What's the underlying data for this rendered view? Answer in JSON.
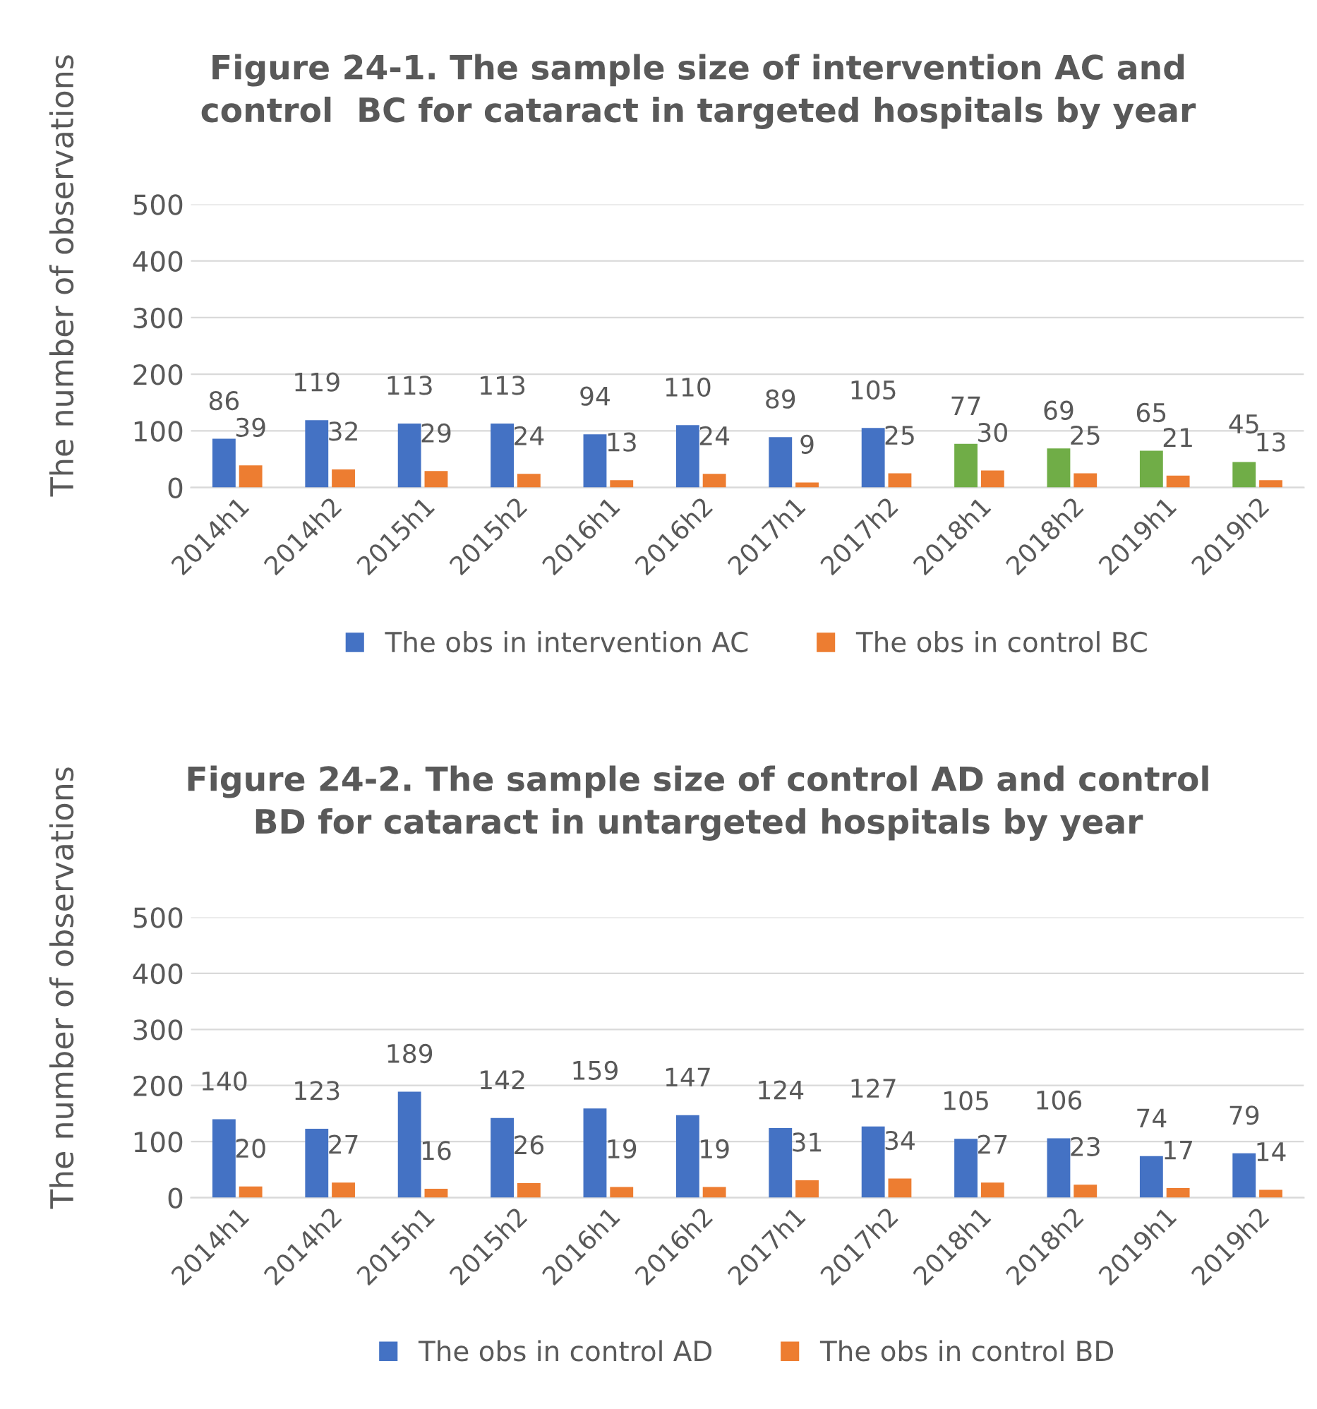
{
  "chart_data": [
    {
      "type": "bar",
      "title": "Figure 24-1. The sample size of intervention AC and\ncontrol  BC for cataract in targeted hospitals by year",
      "ylabel": "The number of observations",
      "categories": [
        "2014h1",
        "2014h2",
        "2015h1",
        "2015h2",
        "2016h1",
        "2016h2",
        "2017h1",
        "2017h2",
        "2018h1",
        "2018h2",
        "2019h1",
        "2019h2"
      ],
      "series": [
        {
          "name": "The obs in intervention AC",
          "color": "#4472c4",
          "colors": [
            "#4472c4",
            "#4472c4",
            "#4472c4",
            "#4472c4",
            "#4472c4",
            "#4472c4",
            "#4472c4",
            "#4472c4",
            "#70ad47",
            "#70ad47",
            "#70ad47",
            "#70ad47"
          ],
          "values": [
            86,
            119,
            113,
            113,
            94,
            110,
            89,
            105,
            77,
            69,
            65,
            45
          ]
        },
        {
          "name": "The obs in control BC",
          "color": "#ed7d31",
          "values": [
            39,
            32,
            29,
            24,
            13,
            24,
            9,
            25,
            30,
            25,
            21,
            13
          ]
        }
      ],
      "ylim": [
        0,
        500
      ],
      "yticks": [
        0,
        100,
        200,
        300,
        400,
        500
      ],
      "grid": "y",
      "legend": "bottom",
      "data_labels": true
    },
    {
      "type": "bar",
      "title": "Figure 24-2. The sample size of control AD and control\nBD for cataract in untargeted hospitals by year",
      "ylabel": "The number of observations",
      "categories": [
        "2014h1",
        "2014h2",
        "2015h1",
        "2015h2",
        "2016h1",
        "2016h2",
        "2017h1",
        "2017h2",
        "2018h1",
        "2018h2",
        "2019h1",
        "2019h2"
      ],
      "series": [
        {
          "name": "The obs in control AD",
          "color": "#4472c4",
          "values": [
            140,
            123,
            189,
            142,
            159,
            147,
            124,
            127,
            105,
            106,
            74,
            79
          ]
        },
        {
          "name": "The obs in control BD",
          "color": "#ed7d31",
          "values": [
            20,
            27,
            16,
            26,
            19,
            19,
            31,
            34,
            27,
            23,
            17,
            14
          ]
        }
      ],
      "ylim": [
        0,
        500
      ],
      "yticks": [
        0,
        100,
        200,
        300,
        400,
        500
      ],
      "grid": "y",
      "legend": "bottom",
      "data_labels": true
    }
  ]
}
